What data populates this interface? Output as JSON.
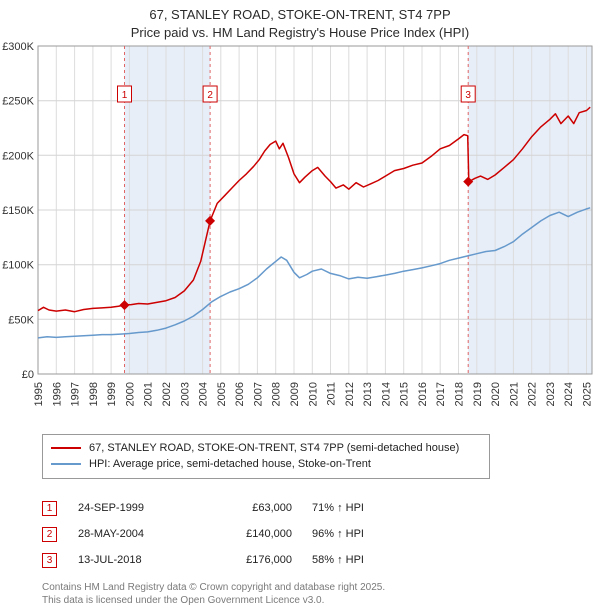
{
  "title": {
    "line1": "67, STANLEY ROAD, STOKE-ON-TRENT, ST4 7PP",
    "line2": "Price paid vs. HM Land Registry's House Price Index (HPI)"
  },
  "chart_data": {
    "type": "line",
    "title": "Price paid vs. HM Land Registry's House Price Index (HPI)",
    "xlim": [
      1995,
      2025.3
    ],
    "ylim": [
      0,
      300000
    ],
    "grid": true,
    "legend_position": "bottom",
    "band_color": "#e8eef8",
    "band_ranges": [
      [
        1999.73,
        2004.41
      ],
      [
        2018.53,
        2025.3
      ]
    ],
    "x_ticks": [
      1995,
      1996,
      1997,
      1998,
      1999,
      2000,
      2001,
      2002,
      2003,
      2004,
      2005,
      2006,
      2007,
      2008,
      2009,
      2010,
      2011,
      2012,
      2013,
      2014,
      2015,
      2016,
      2017,
      2018,
      2019,
      2020,
      2021,
      2022,
      2023,
      2024,
      2025
    ],
    "y_ticks": [
      {
        "value": 0,
        "label": "£0"
      },
      {
        "value": 50000,
        "label": "£50K"
      },
      {
        "value": 100000,
        "label": "£100K"
      },
      {
        "value": 150000,
        "label": "£150K"
      },
      {
        "value": 200000,
        "label": "£200K"
      },
      {
        "value": 250000,
        "label": "£250K"
      },
      {
        "value": 300000,
        "label": "£300K"
      }
    ],
    "sale_markers": [
      {
        "label": "1",
        "x": 1999.73,
        "y": 63000,
        "date": "24-SEP-1999",
        "price": "£63,000",
        "vs_hpi": "71% ↑ HPI"
      },
      {
        "label": "2",
        "x": 2004.41,
        "y": 140000,
        "date": "28-MAY-2004",
        "price": "£140,000",
        "vs_hpi": "96% ↑ HPI"
      },
      {
        "label": "3",
        "x": 2018.53,
        "y": 176000,
        "date": "13-JUL-2018",
        "price": "£176,000",
        "vs_hpi": "58% ↑ HPI"
      }
    ],
    "series": [
      {
        "name": "67, STANLEY ROAD, STOKE-ON-TRENT, ST4 7PP (semi-detached house)",
        "color": "#cc0000",
        "points": [
          [
            1995.0,
            58000
          ],
          [
            1995.3,
            61000
          ],
          [
            1995.6,
            58500
          ],
          [
            1996.0,
            57500
          ],
          [
            1996.5,
            58500
          ],
          [
            1997.0,
            57000
          ],
          [
            1997.5,
            59000
          ],
          [
            1998.0,
            60000
          ],
          [
            1998.5,
            60500
          ],
          [
            1999.0,
            61000
          ],
          [
            1999.4,
            62000
          ],
          [
            1999.73,
            63000
          ],
          [
            2000.1,
            63500
          ],
          [
            2000.5,
            64500
          ],
          [
            2001.0,
            64000
          ],
          [
            2001.5,
            65500
          ],
          [
            2002.0,
            67000
          ],
          [
            2002.5,
            70000
          ],
          [
            2003.0,
            76000
          ],
          [
            2003.5,
            86000
          ],
          [
            2003.9,
            103000
          ],
          [
            2004.41,
            140000
          ],
          [
            2004.8,
            156000
          ],
          [
            2005.2,
            163000
          ],
          [
            2005.6,
            170000
          ],
          [
            2006.0,
            177000
          ],
          [
            2006.4,
            183000
          ],
          [
            2006.8,
            190000
          ],
          [
            2007.1,
            196000
          ],
          [
            2007.4,
            204000
          ],
          [
            2007.7,
            210000
          ],
          [
            2008.0,
            213000
          ],
          [
            2008.2,
            206000
          ],
          [
            2008.4,
            211000
          ],
          [
            2008.7,
            198000
          ],
          [
            2009.0,
            183000
          ],
          [
            2009.3,
            175000
          ],
          [
            2009.6,
            180000
          ],
          [
            2010.0,
            186000
          ],
          [
            2010.3,
            189000
          ],
          [
            2010.7,
            181000
          ],
          [
            2011.0,
            176000
          ],
          [
            2011.3,
            170000
          ],
          [
            2011.7,
            173000
          ],
          [
            2012.0,
            169000
          ],
          [
            2012.4,
            175000
          ],
          [
            2012.8,
            171000
          ],
          [
            2013.2,
            174000
          ],
          [
            2013.6,
            177000
          ],
          [
            2014.0,
            181000
          ],
          [
            2014.5,
            186000
          ],
          [
            2015.0,
            188000
          ],
          [
            2015.5,
            191000
          ],
          [
            2016.0,
            193000
          ],
          [
            2016.5,
            199000
          ],
          [
            2017.0,
            206000
          ],
          [
            2017.5,
            209000
          ],
          [
            2018.0,
            215000
          ],
          [
            2018.3,
            219000
          ],
          [
            2018.5,
            218000
          ],
          [
            2018.56,
            176000
          ],
          [
            2018.9,
            179000
          ],
          [
            2019.2,
            181000
          ],
          [
            2019.6,
            178000
          ],
          [
            2020.0,
            182000
          ],
          [
            2020.5,
            189000
          ],
          [
            2021.0,
            196000
          ],
          [
            2021.5,
            206000
          ],
          [
            2022.0,
            217000
          ],
          [
            2022.5,
            226000
          ],
          [
            2023.0,
            233000
          ],
          [
            2023.3,
            238000
          ],
          [
            2023.6,
            229000
          ],
          [
            2024.0,
            236000
          ],
          [
            2024.3,
            229000
          ],
          [
            2024.6,
            239000
          ],
          [
            2025.0,
            241000
          ],
          [
            2025.2,
            244000
          ]
        ]
      },
      {
        "name": "HPI: Average price, semi-detached house, Stoke-on-Trent",
        "color": "#6699cc",
        "points": [
          [
            1995.0,
            33000
          ],
          [
            1995.5,
            34000
          ],
          [
            1996.0,
            33500
          ],
          [
            1996.5,
            34000
          ],
          [
            1997.0,
            34500
          ],
          [
            1997.5,
            35000
          ],
          [
            1998.0,
            35500
          ],
          [
            1998.5,
            36000
          ],
          [
            1999.0,
            36000
          ],
          [
            1999.5,
            36500
          ],
          [
            2000.0,
            37000
          ],
          [
            2000.5,
            38000
          ],
          [
            2001.0,
            38500
          ],
          [
            2001.5,
            40000
          ],
          [
            2002.0,
            42000
          ],
          [
            2002.5,
            45000
          ],
          [
            2003.0,
            48500
          ],
          [
            2003.5,
            53000
          ],
          [
            2004.0,
            59000
          ],
          [
            2004.5,
            66000
          ],
          [
            2005.0,
            71000
          ],
          [
            2005.5,
            75000
          ],
          [
            2006.0,
            78000
          ],
          [
            2006.5,
            82000
          ],
          [
            2007.0,
            88000
          ],
          [
            2007.5,
            96000
          ],
          [
            2008.0,
            103000
          ],
          [
            2008.3,
            107000
          ],
          [
            2008.6,
            104000
          ],
          [
            2009.0,
            93000
          ],
          [
            2009.3,
            88000
          ],
          [
            2009.7,
            91000
          ],
          [
            2010.0,
            94000
          ],
          [
            2010.5,
            96000
          ],
          [
            2011.0,
            92000
          ],
          [
            2011.5,
            90000
          ],
          [
            2012.0,
            87000
          ],
          [
            2012.5,
            88500
          ],
          [
            2013.0,
            87500
          ],
          [
            2013.5,
            89000
          ],
          [
            2014.0,
            90500
          ],
          [
            2014.5,
            92000
          ],
          [
            2015.0,
            94000
          ],
          [
            2015.5,
            95500
          ],
          [
            2016.0,
            97000
          ],
          [
            2016.5,
            99000
          ],
          [
            2017.0,
            101000
          ],
          [
            2017.5,
            104000
          ],
          [
            2018.0,
            106000
          ],
          [
            2018.5,
            108000
          ],
          [
            2019.0,
            110000
          ],
          [
            2019.5,
            112000
          ],
          [
            2020.0,
            113000
          ],
          [
            2020.5,
            116500
          ],
          [
            2021.0,
            121000
          ],
          [
            2021.5,
            128000
          ],
          [
            2022.0,
            134000
          ],
          [
            2022.5,
            140000
          ],
          [
            2023.0,
            145000
          ],
          [
            2023.5,
            148000
          ],
          [
            2024.0,
            144000
          ],
          [
            2024.5,
            148000
          ],
          [
            2025.0,
            151000
          ],
          [
            2025.2,
            152000
          ]
        ]
      }
    ]
  },
  "legend": {
    "items": [
      {
        "label": "67, STANLEY ROAD, STOKE-ON-TRENT, ST4 7PP (semi-detached house)"
      },
      {
        "label": "HPI: Average price, semi-detached house, Stoke-on-Trent"
      }
    ]
  },
  "transactions": [
    {
      "num": "1",
      "date": "24-SEP-1999",
      "price": "£63,000",
      "vs_hpi": "71% ↑ HPI"
    },
    {
      "num": "2",
      "date": "28-MAY-2004",
      "price": "£140,000",
      "vs_hpi": "96% ↑ HPI"
    },
    {
      "num": "3",
      "date": "13-JUL-2018",
      "price": "£176,000",
      "vs_hpi": "58% ↑ HPI"
    }
  ],
  "footer": {
    "line1": "Contains HM Land Registry data © Crown copyright and database right 2025.",
    "line2": "This data is licensed under the Open Government Licence v3.0."
  }
}
